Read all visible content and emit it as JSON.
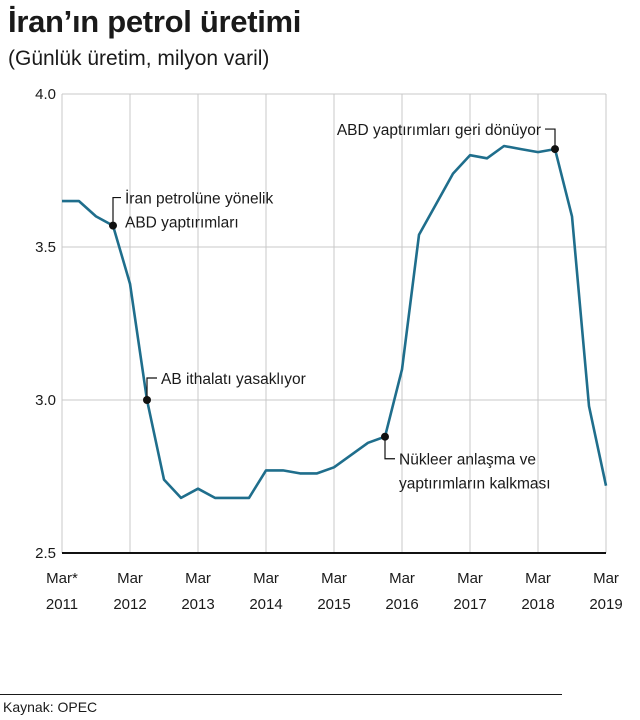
{
  "title": "İran’ın petrol üretimi",
  "subtitle": "(Günlük üretim, milyon varil)",
  "source": "Kaynak: OPEC",
  "colors": {
    "line": "#1f6e8c",
    "grid": "#c8c8c8",
    "axis": "#111111"
  },
  "chart_data": {
    "type": "line",
    "title": "İran’ın petrol üretimi",
    "subtitle": "(Günlük üretim, milyon varil)",
    "xlabel": "",
    "ylabel": "",
    "x_unit": "year",
    "xlim": [
      2011.17,
      2019.17
    ],
    "ylim": [
      2.5,
      4.0
    ],
    "grid": true,
    "x_ticks": [
      {
        "x": 2011.17,
        "top": "Mar*",
        "bottom": "2011"
      },
      {
        "x": 2012.17,
        "top": "Mar",
        "bottom": "2012"
      },
      {
        "x": 2013.17,
        "top": "Mar",
        "bottom": "2013"
      },
      {
        "x": 2014.17,
        "top": "Mar",
        "bottom": "2014"
      },
      {
        "x": 2015.17,
        "top": "Mar",
        "bottom": "2015"
      },
      {
        "x": 2016.17,
        "top": "Mar",
        "bottom": "2016"
      },
      {
        "x": 2017.17,
        "top": "Mar",
        "bottom": "2017"
      },
      {
        "x": 2018.17,
        "top": "Mar",
        "bottom": "2018"
      },
      {
        "x": 2019.17,
        "top": "Mar",
        "bottom": "2019"
      }
    ],
    "y_ticks": [
      {
        "y": 2.5,
        "label": "2.5"
      },
      {
        "y": 3.0,
        "label": "3.0"
      },
      {
        "y": 3.5,
        "label": "3.5"
      },
      {
        "y": 4.0,
        "label": "4.0"
      }
    ],
    "series": [
      {
        "points": [
          [
            2011.17,
            3.65
          ],
          [
            2011.42,
            3.65
          ],
          [
            2011.67,
            3.6
          ],
          [
            2011.92,
            3.57
          ],
          [
            2012.17,
            3.38
          ],
          [
            2012.42,
            3.0
          ],
          [
            2012.67,
            2.74
          ],
          [
            2012.92,
            2.68
          ],
          [
            2013.17,
            2.71
          ],
          [
            2013.42,
            2.68
          ],
          [
            2013.67,
            2.68
          ],
          [
            2013.92,
            2.68
          ],
          [
            2014.17,
            2.77
          ],
          [
            2014.42,
            2.77
          ],
          [
            2014.67,
            2.76
          ],
          [
            2014.92,
            2.76
          ],
          [
            2015.17,
            2.78
          ],
          [
            2015.42,
            2.82
          ],
          [
            2015.67,
            2.86
          ],
          [
            2015.92,
            2.88
          ],
          [
            2016.17,
            3.1
          ],
          [
            2016.42,
            3.54
          ],
          [
            2016.67,
            3.64
          ],
          [
            2016.92,
            3.74
          ],
          [
            2017.17,
            3.8
          ],
          [
            2017.42,
            3.79
          ],
          [
            2017.67,
            3.83
          ],
          [
            2017.92,
            3.82
          ],
          [
            2018.17,
            3.81
          ],
          [
            2018.42,
            3.82
          ],
          [
            2018.67,
            3.6
          ],
          [
            2018.92,
            2.98
          ],
          [
            2019.17,
            2.72
          ]
        ]
      }
    ],
    "annotations": [
      {
        "x": 2011.92,
        "y": 3.57,
        "lines": [
          "İran petrolüne yönelik",
          "ABD yaptırımları"
        ]
      },
      {
        "x": 2012.42,
        "y": 3.0,
        "lines": [
          "AB ithalatı yasaklıyor"
        ]
      },
      {
        "x": 2015.92,
        "y": 2.88,
        "lines": [
          "Nükleer anlaşma ve",
          "yaptırımların kalkması"
        ]
      },
      {
        "x": 2018.42,
        "y": 3.82,
        "lines": [
          "ABD yaptırımları geri dönüyor"
        ]
      }
    ]
  }
}
